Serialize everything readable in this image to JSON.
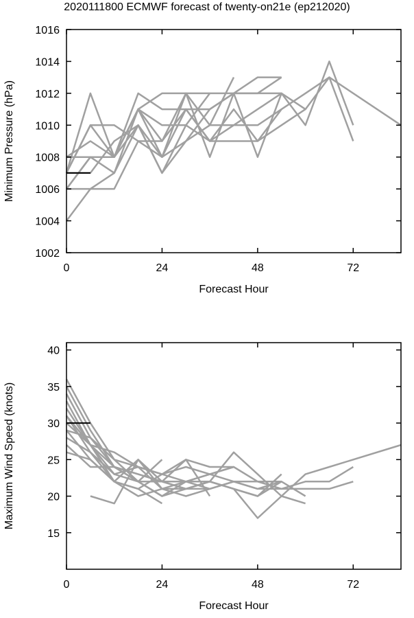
{
  "title": "2020111800 ECMWF forecast of twenty-on21e (ep212020)",
  "chart_data": [
    {
      "type": "line",
      "panel": "pressure",
      "xlabel": "Forecast Hour",
      "ylabel": "Minimum Pressure (hPa)",
      "xlim": [
        0,
        84
      ],
      "ylim": [
        1002,
        1016
      ],
      "xticks": [
        0,
        24,
        48,
        72
      ],
      "yticks": [
        1002,
        1004,
        1006,
        1008,
        1010,
        1012,
        1014,
        1016
      ],
      "grid": false,
      "series_color": "#a0a0a0",
      "observed_color": "#000000",
      "observed": {
        "x": [
          0,
          6
        ],
        "y": [
          1007,
          1007
        ]
      },
      "series": [
        {
          "x": [
            0,
            6,
            12,
            18,
            24,
            30,
            36,
            42,
            48,
            54,
            60,
            66,
            72
          ],
          "y": [
            1004,
            1006,
            1007,
            1010,
            1007,
            1010,
            1009,
            1010,
            1011,
            1012,
            1011,
            1013,
            1009
          ]
        },
        {
          "x": [
            0,
            6,
            12,
            18,
            24,
            30,
            36,
            42,
            48,
            54,
            60,
            66,
            72
          ],
          "y": [
            1006,
            1008,
            1007,
            1011,
            1008,
            1012,
            1008,
            1012,
            1012,
            1012,
            1010,
            1014,
            1010
          ]
        },
        {
          "x": [
            0,
            6,
            12,
            18,
            24,
            30,
            36,
            42,
            48,
            54,
            60,
            66,
            84
          ],
          "y": [
            1007,
            1010,
            1008,
            1012,
            1011,
            1011,
            1009,
            1009,
            1009,
            1011,
            1012,
            1013,
            1010
          ]
        },
        {
          "x": [
            0,
            6,
            12,
            18,
            24,
            30,
            36,
            42,
            48,
            54
          ],
          "y": [
            1008,
            1009,
            1008,
            1011,
            1012,
            1012,
            1012,
            1012,
            1012,
            1013
          ]
        },
        {
          "x": [
            0,
            6,
            12,
            18,
            24,
            30,
            36,
            42,
            48,
            54
          ],
          "y": [
            1007,
            1010,
            1010,
            1009,
            1008,
            1011,
            1011,
            1012,
            1013,
            1013
          ]
        },
        {
          "x": [
            0,
            6,
            12,
            18,
            24,
            30,
            36,
            42
          ],
          "y": [
            1006,
            1008,
            1008,
            1010,
            1007,
            1009,
            1010,
            1013
          ]
        },
        {
          "x": [
            0,
            6,
            12,
            18,
            24,
            30,
            36,
            42,
            48,
            54
          ],
          "y": [
            1007,
            1007,
            1009,
            1010,
            1008,
            1009,
            1011,
            1012,
            1008,
            1012
          ]
        },
        {
          "x": [
            0,
            6,
            12,
            18,
            24,
            30,
            36
          ],
          "y": [
            1007,
            1012,
            1008,
            1011,
            1010,
            1010,
            1012
          ]
        },
        {
          "x": [
            0,
            6,
            12,
            18,
            24,
            30,
            36,
            42,
            48,
            54
          ],
          "y": [
            1006,
            1006,
            1006,
            1009,
            1009,
            1012,
            1010,
            1010,
            1010,
            1011
          ]
        },
        {
          "x": [
            0,
            6,
            12,
            18,
            24,
            30,
            36,
            42,
            48,
            54,
            60
          ],
          "y": [
            1008,
            1008,
            1008,
            1011,
            1009,
            1011,
            1009,
            1011,
            1009,
            1010,
            1011
          ]
        }
      ]
    },
    {
      "type": "line",
      "panel": "wind",
      "xlabel": "Forecast Hour",
      "ylabel": "Maximum Wind Speed (knots)",
      "xlim": [
        0,
        84
      ],
      "ylim": [
        10,
        41
      ],
      "xticks": [
        0,
        24,
        48,
        72
      ],
      "yticks": [
        15,
        20,
        25,
        30,
        35,
        40
      ],
      "grid": false,
      "series_color": "#a0a0a0",
      "observed_color": "#000000",
      "observed": {
        "x": [
          0,
          6
        ],
        "y": [
          30,
          30
        ]
      },
      "series": [
        {
          "x": [
            0,
            6,
            12,
            18,
            24,
            30,
            36,
            42,
            48,
            54,
            60
          ],
          "y": [
            36,
            30,
            25,
            22,
            20,
            22,
            22,
            26,
            23,
            20,
            19
          ]
        },
        {
          "x": [
            0,
            6,
            12,
            18,
            24,
            30,
            36,
            42,
            48,
            54
          ],
          "y": [
            35,
            29,
            24,
            23,
            22,
            21,
            22,
            21,
            20,
            23
          ]
        },
        {
          "x": [
            0,
            6,
            12,
            18,
            24,
            30,
            36,
            42,
            48,
            54,
            60,
            66,
            72
          ],
          "y": [
            34,
            28,
            25,
            24,
            23,
            22,
            23,
            22,
            21,
            21,
            22,
            22,
            24
          ]
        },
        {
          "x": [
            0,
            6,
            12,
            18,
            24,
            30,
            36,
            42,
            48,
            54,
            60,
            66,
            72
          ],
          "y": [
            33,
            27,
            24,
            22,
            22,
            21,
            21,
            22,
            22,
            21,
            21,
            21,
            22
          ]
        },
        {
          "x": [
            0,
            6,
            12,
            18,
            24,
            30,
            36,
            42,
            48,
            54,
            60,
            66,
            84
          ],
          "y": [
            32,
            27,
            23,
            24,
            21,
            21,
            22,
            21,
            17,
            20,
            23,
            24,
            27
          ]
        },
        {
          "x": [
            0,
            6,
            12,
            18,
            24,
            30,
            36
          ],
          "y": [
            31,
            26,
            22,
            21,
            23,
            25,
            20
          ]
        },
        {
          "x": [
            0,
            6,
            12,
            18,
            24,
            30,
            36,
            42
          ],
          "y": [
            29,
            25,
            22,
            25,
            22,
            22,
            23,
            24
          ]
        },
        {
          "x": [
            0,
            6,
            12,
            18,
            24
          ],
          "y": [
            28,
            26,
            23,
            22,
            25
          ]
        },
        {
          "x": [
            0,
            6,
            12,
            18,
            24,
            30,
            36,
            42,
            48,
            54
          ],
          "y": [
            27,
            24,
            24,
            22,
            20,
            21,
            22,
            21,
            20,
            22
          ]
        },
        {
          "x": [
            0,
            6,
            12,
            18,
            24
          ],
          "y": [
            26,
            25,
            22,
            21,
            19
          ]
        },
        {
          "x": [
            6,
            12,
            18,
            24,
            30,
            36,
            42,
            48,
            54
          ],
          "y": [
            20,
            19,
            25,
            21,
            20,
            21,
            22,
            21,
            22
          ]
        },
        {
          "x": [
            0,
            6,
            12,
            18,
            24,
            30,
            36
          ],
          "y": [
            31,
            27,
            22,
            20,
            21,
            22,
            21
          ]
        },
        {
          "x": [
            0,
            6,
            12,
            18,
            24,
            30,
            36,
            42,
            48,
            54,
            60
          ],
          "y": [
            30,
            27,
            26,
            24,
            23,
            24,
            23,
            24,
            22,
            22,
            20
          ]
        },
        {
          "x": [
            0,
            6,
            12,
            18,
            24,
            30,
            36,
            42
          ],
          "y": [
            29,
            28,
            24,
            23,
            22,
            25,
            24,
            24
          ]
        }
      ]
    }
  ]
}
